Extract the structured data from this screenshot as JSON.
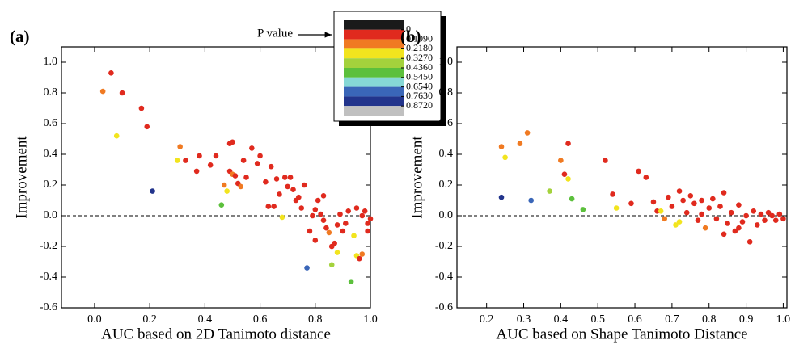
{
  "chart_data": [
    {
      "type": "scatter",
      "panel_label": "(a)",
      "xlabel": "AUC based on 2D Tanimoto distance",
      "ylabel": "Improvement",
      "xlim": [
        -0.12,
        1.0
      ],
      "ylim": [
        -0.6,
        1.1
      ],
      "xticks": [
        {
          "value": 0.0,
          "label": "0.0"
        },
        0.2,
        0.4,
        0.6,
        0.8,
        {
          "value": 1.0,
          "label": "1.0"
        }
      ],
      "yticks": [
        -0.6,
        -0.4,
        -0.2,
        {
          "value": 0.0,
          "label": "0.0"
        },
        0.2,
        0.4,
        0.6,
        0.8,
        {
          "value": 1.0,
          "label": "1.0"
        }
      ],
      "reference_line": 0,
      "x": [
        0.03,
        0.06,
        0.08,
        0.1,
        0.17,
        0.19,
        0.21,
        0.3,
        0.31,
        0.33,
        0.37,
        0.38,
        0.42,
        0.44,
        0.46,
        0.47,
        0.48,
        0.49,
        0.49,
        0.5,
        0.5,
        0.51,
        0.52,
        0.53,
        0.54,
        0.55,
        0.57,
        0.59,
        0.6,
        0.62,
        0.63,
        0.64,
        0.65,
        0.66,
        0.67,
        0.68,
        0.69,
        0.7,
        0.71,
        0.72,
        0.73,
        0.74,
        0.75,
        0.76,
        0.77,
        0.78,
        0.79,
        0.8,
        0.81,
        0.82,
        0.83,
        0.84,
        0.85,
        0.86,
        0.86,
        0.87,
        0.88,
        0.89,
        0.9,
        0.91,
        0.92,
        0.93,
        0.94,
        0.95,
        0.96,
        0.97,
        0.98,
        0.99,
        0.99,
        1.0,
        0.97,
        0.95,
        0.88,
        0.83,
        0.8
      ],
      "y": [
        0.81,
        0.93,
        0.52,
        0.8,
        0.7,
        0.58,
        0.16,
        0.36,
        0.45,
        0.36,
        0.29,
        0.39,
        0.33,
        0.39,
        0.07,
        0.2,
        0.16,
        0.29,
        0.47,
        0.48,
        0.27,
        0.26,
        0.21,
        0.19,
        0.36,
        0.25,
        0.44,
        0.34,
        0.39,
        0.22,
        0.06,
        0.32,
        0.06,
        0.24,
        0.14,
        -0.01,
        0.25,
        0.19,
        0.25,
        0.17,
        0.1,
        0.12,
        0.05,
        0.2,
        -0.34,
        -0.1,
        0.0,
        -0.16,
        0.1,
        0.01,
        0.13,
        -0.08,
        -0.11,
        -0.2,
        -0.32,
        -0.18,
        -0.24,
        0.01,
        -0.1,
        -0.05,
        0.03,
        -0.43,
        -0.13,
        -0.26,
        -0.28,
        -0.25,
        0.03,
        -0.05,
        -0.1,
        -0.02,
        0.0,
        0.05,
        -0.06,
        -0.03,
        0.04
      ],
      "colors": [
        "#f07a22",
        "#e02a1e",
        "#f2e41e",
        "#e02a1e",
        "#e02a1e",
        "#e02a1e",
        "#22348c",
        "#f2e41e",
        "#f07a22",
        "#e02a1e",
        "#e02a1e",
        "#e02a1e",
        "#e02a1e",
        "#e02a1e",
        "#5cc03c",
        "#f07a22",
        "#f2e41e",
        "#e02a1e",
        "#e02a1e",
        "#e02a1e",
        "#f07a22",
        "#e02a1e",
        "#e02a1e",
        "#f07a22",
        "#e02a1e",
        "#e02a1e",
        "#e02a1e",
        "#e02a1e",
        "#e02a1e",
        "#e02a1e",
        "#e02a1e",
        "#e02a1e",
        "#e02a1e",
        "#e02a1e",
        "#e02a1e",
        "#f2e41e",
        "#e02a1e",
        "#e02a1e",
        "#e02a1e",
        "#e02a1e",
        "#e02a1e",
        "#e02a1e",
        "#e02a1e",
        "#e02a1e",
        "#3a66b8",
        "#e02a1e",
        "#e02a1e",
        "#e02a1e",
        "#e02a1e",
        "#e02a1e",
        "#e02a1e",
        "#e02a1e",
        "#f07a22",
        "#e02a1e",
        "#a4d23c",
        "#e02a1e",
        "#f2e41e",
        "#e02a1e",
        "#e02a1e",
        "#e02a1e",
        "#e02a1e",
        "#5cc03c",
        "#f2e41e",
        "#f2e41e",
        "#e02a1e",
        "#f07a22",
        "#e02a1e",
        "#e02a1e",
        "#e02a1e",
        "#e02a1e",
        "#e02a1e",
        "#e02a1e",
        "#e02a1e",
        "#e02a1e",
        "#e02a1e"
      ],
      "colorbar": {
        "title": "P value",
        "colors": [
          "#1a1a1a",
          "#e02a1e",
          "#f07a22",
          "#f2e41e",
          "#a4d23c",
          "#5cc03c",
          "#86d8d6",
          "#3a66b8",
          "#22348c",
          "#c0c0c0"
        ],
        "ticks": [
          0,
          {
            "value": 0.109,
            "label": "0.1090"
          },
          {
            "value": 0.218,
            "label": "0.2180"
          },
          {
            "value": 0.327,
            "label": "0.3270"
          },
          {
            "value": 0.436,
            "label": "0.4360"
          },
          {
            "value": 0.545,
            "label": "0.5450"
          },
          {
            "value": 0.654,
            "label": "0.6540"
          },
          {
            "value": 0.763,
            "label": "0.7630"
          },
          {
            "value": 0.872,
            "label": "0.8720"
          }
        ]
      }
    },
    {
      "type": "scatter",
      "panel_label": "(b)",
      "xlabel": "AUC based on Shape Tanimoto Distance",
      "ylabel": "Improvement",
      "xlim": [
        0.12,
        1.01
      ],
      "ylim": [
        -0.6,
        1.1
      ],
      "xticks": [
        0.2,
        0.3,
        0.4,
        0.5,
        0.6,
        0.7,
        0.8,
        0.9,
        {
          "value": 1.0,
          "label": "1.0"
        }
      ],
      "yticks": [
        -0.6,
        -0.4,
        -0.2,
        {
          "value": 0.0,
          "label": "0.0"
        },
        0.2,
        0.4,
        0.6,
        0.8,
        {
          "value": 1.0,
          "label": "1.0"
        }
      ],
      "reference_line": 0,
      "x": [
        0.24,
        0.24,
        0.25,
        0.29,
        0.31,
        0.32,
        0.37,
        0.4,
        0.41,
        0.42,
        0.42,
        0.43,
        0.46,
        0.52,
        0.54,
        0.55,
        0.59,
        0.61,
        0.63,
        0.65,
        0.66,
        0.67,
        0.68,
        0.69,
        0.7,
        0.71,
        0.72,
        0.72,
        0.73,
        0.74,
        0.75,
        0.76,
        0.77,
        0.78,
        0.79,
        0.8,
        0.81,
        0.82,
        0.83,
        0.84,
        0.85,
        0.86,
        0.87,
        0.88,
        0.89,
        0.9,
        0.91,
        0.92,
        0.93,
        0.94,
        0.95,
        0.96,
        0.97,
        0.98,
        0.99,
        1.0,
        0.84,
        0.78,
        0.88
      ],
      "y": [
        0.12,
        0.45,
        0.38,
        0.47,
        0.54,
        0.1,
        0.16,
        0.36,
        0.27,
        0.47,
        0.24,
        0.11,
        0.04,
        0.36,
        0.14,
        0.05,
        0.08,
        0.29,
        0.25,
        0.09,
        0.03,
        0.03,
        -0.02,
        0.12,
        0.06,
        -0.06,
        -0.04,
        0.16,
        0.1,
        0.02,
        0.13,
        0.08,
        -0.03,
        0.1,
        -0.08,
        0.05,
        0.11,
        -0.02,
        0.06,
        0.15,
        -0.05,
        0.02,
        -0.1,
        0.07,
        -0.04,
        0.0,
        -0.17,
        0.03,
        -0.06,
        0.01,
        -0.03,
        0.02,
        0.0,
        -0.03,
        0.01,
        -0.02,
        -0.12,
        0.01,
        -0.08
      ],
      "colors": [
        "#22348c",
        "#f07a22",
        "#f2e41e",
        "#f07a22",
        "#f07a22",
        "#3a66b8",
        "#a4d23c",
        "#f07a22",
        "#e02a1e",
        "#e02a1e",
        "#f2e41e",
        "#5cc03c",
        "#5cc03c",
        "#e02a1e",
        "#e02a1e",
        "#f2e41e",
        "#e02a1e",
        "#e02a1e",
        "#e02a1e",
        "#e02a1e",
        "#e02a1e",
        "#f2e41e",
        "#f07a22",
        "#e02a1e",
        "#e02a1e",
        "#f2e41e",
        "#f2e41e",
        "#e02a1e",
        "#e02a1e",
        "#e02a1e",
        "#e02a1e",
        "#e02a1e",
        "#e02a1e",
        "#e02a1e",
        "#f07a22",
        "#e02a1e",
        "#e02a1e",
        "#e02a1e",
        "#e02a1e",
        "#e02a1e",
        "#e02a1e",
        "#e02a1e",
        "#e02a1e",
        "#e02a1e",
        "#e02a1e",
        "#e02a1e",
        "#e02a1e",
        "#e02a1e",
        "#e02a1e",
        "#e02a1e",
        "#e02a1e",
        "#e02a1e",
        "#e02a1e",
        "#e02a1e",
        "#e02a1e",
        "#e02a1e",
        "#e02a1e",
        "#e02a1e",
        "#e02a1e"
      ]
    }
  ]
}
